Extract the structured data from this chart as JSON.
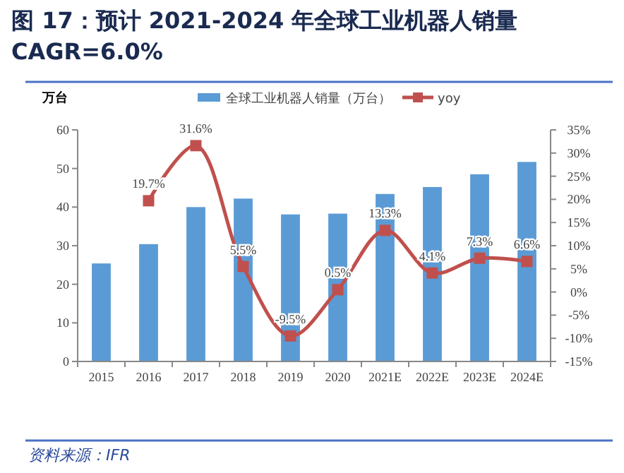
{
  "chart_data": {
    "type": "bar",
    "title": "图 17：预计 2021-2024 年全球工业机器人销量 CAGR=6.0%",
    "ylabel": "万台",
    "annotations": [
      "资料来源：IFR"
    ],
    "categories": [
      "2015",
      "2016",
      "2017",
      "2018",
      "2019",
      "2020",
      "2021E",
      "2022E",
      "2023E",
      "2024E"
    ],
    "series": [
      {
        "name": "全球工业机器人销量（万台）",
        "color": "#5b9bd5",
        "values": [
          25.4,
          30.4,
          40.0,
          42.2,
          38.1,
          38.3,
          43.4,
          45.2,
          48.5,
          51.7
        ]
      },
      {
        "name": "yoy",
        "type": "line",
        "axis": "y2",
        "color": "#c0504d",
        "marker": "square",
        "values": [
          null,
          19.7,
          31.6,
          5.5,
          -9.5,
          0.5,
          13.3,
          4.1,
          7.3,
          6.6
        ],
        "value_labels": [
          null,
          "19.7%",
          "31.6%",
          "5.5%",
          "-9.5%",
          "0.5%",
          "13.3%",
          "4.1%",
          "7.3%",
          "6.6%"
        ]
      }
    ],
    "ylim": [
      0,
      60
    ],
    "yticks": [
      0,
      10,
      20,
      30,
      40,
      50,
      60
    ],
    "y2lim": [
      -15,
      35
    ],
    "y2ticks": [
      {
        "value": -15,
        "label": "-15%"
      },
      {
        "value": -10,
        "label": "-10%"
      },
      {
        "value": -5,
        "label": "-5%"
      },
      {
        "value": 0,
        "label": "0%"
      },
      {
        "value": 5,
        "label": "5%"
      },
      {
        "value": 10,
        "label": "10%"
      },
      {
        "value": 15,
        "label": "15%"
      },
      {
        "value": 20,
        "label": "20%"
      },
      {
        "value": 25,
        "label": "25%"
      },
      {
        "value": 30,
        "label": "30%"
      },
      {
        "value": 35,
        "label": "35%"
      }
    ],
    "legend": "top",
    "grid": false
  }
}
